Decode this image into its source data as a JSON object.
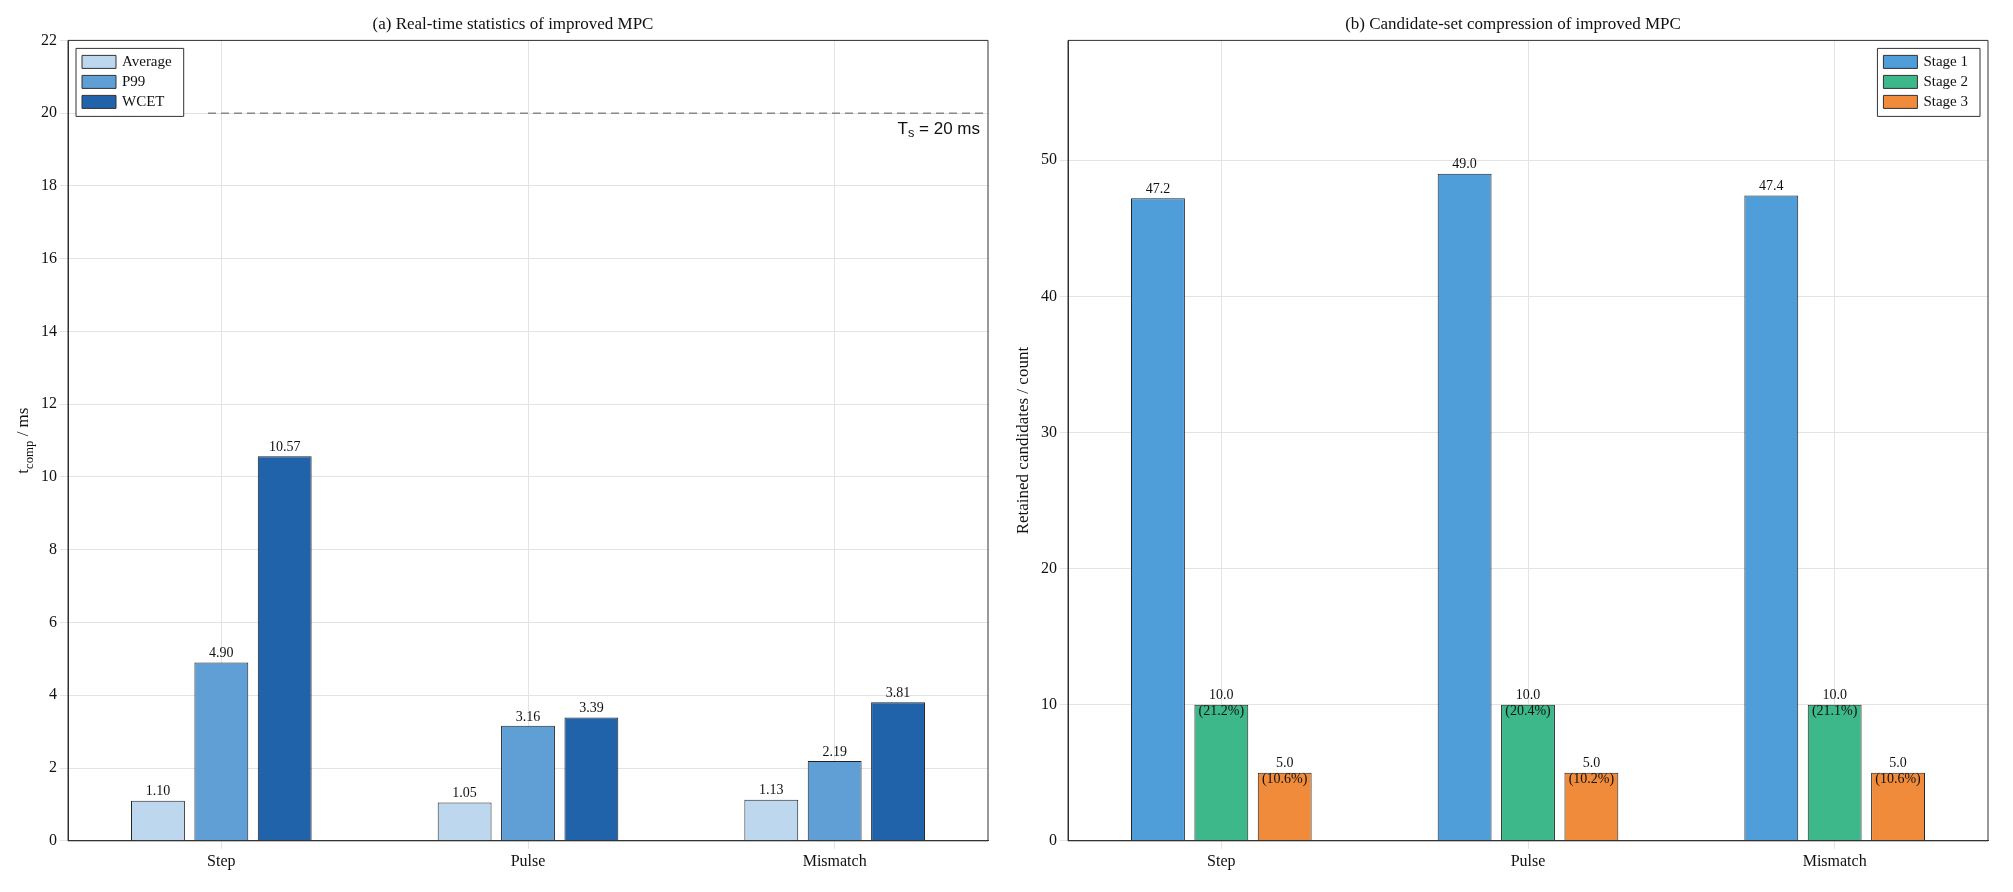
{
  "chart_data": [
    {
      "type": "bar",
      "title": "(a) Real-time statistics of improved MPC",
      "ylabel": "t$_{comp}$ / ms",
      "categories": [
        "Step",
        "Pulse",
        "Mismatch"
      ],
      "series": [
        {
          "name": "Average",
          "color": "#bdd7ee",
          "values": [
            1.1,
            1.05,
            1.13
          ],
          "value_labels": [
            "1.10",
            "1.05",
            "1.13"
          ]
        },
        {
          "name": "P99",
          "color": "#5f9fd6",
          "values": [
            4.9,
            3.16,
            2.19
          ],
          "value_labels": [
            "4.90",
            "3.16",
            "2.19"
          ]
        },
        {
          "name": "WCET",
          "color": "#2163ab",
          "values": [
            10.57,
            3.39,
            3.81
          ],
          "value_labels": [
            "10.57",
            "3.39",
            "3.81"
          ]
        }
      ],
      "ylim": [
        0,
        22
      ],
      "yticks": [
        0,
        2,
        4,
        6,
        8,
        10,
        12,
        14,
        16,
        18,
        20,
        22
      ],
      "grid": true,
      "legend": "top left",
      "ref_lines": [
        {
          "axis": "y",
          "value": 20,
          "label": "T$_{s}$ = 20 ms",
          "color": "#888888",
          "line_style": "dashed"
        }
      ]
    },
    {
      "type": "bar",
      "title": "(b) Candidate-set compression of improved MPC",
      "ylabel": "Retained candidates / count",
      "categories": [
        "Step",
        "Pulse",
        "Mismatch"
      ],
      "series": [
        {
          "name": "Stage 1",
          "color": "#4f9dd9",
          "values": [
            47.2,
            49.0,
            47.4
          ],
          "value_labels": [
            "47.2",
            "49.0",
            "47.4"
          ]
        },
        {
          "name": "Stage 2",
          "color": "#3db88a",
          "values": [
            10.0,
            10.0,
            10.0
          ],
          "value_labels": [
            "10.0\n(21.2%)",
            "10.0\n(20.4%)",
            "10.0\n(21.1%)"
          ]
        },
        {
          "name": "Stage 3",
          "color": "#f08b3b",
          "values": [
            5.0,
            5.0,
            5.0
          ],
          "value_labels": [
            "5.0\n(10.6%)",
            "5.0\n(10.2%)",
            "5.0\n(10.6%)"
          ]
        }
      ],
      "ylim": [
        0,
        58.8
      ],
      "yticks": [
        0,
        10,
        20,
        30,
        40,
        50
      ],
      "grid": true,
      "legend": "top right"
    }
  ]
}
